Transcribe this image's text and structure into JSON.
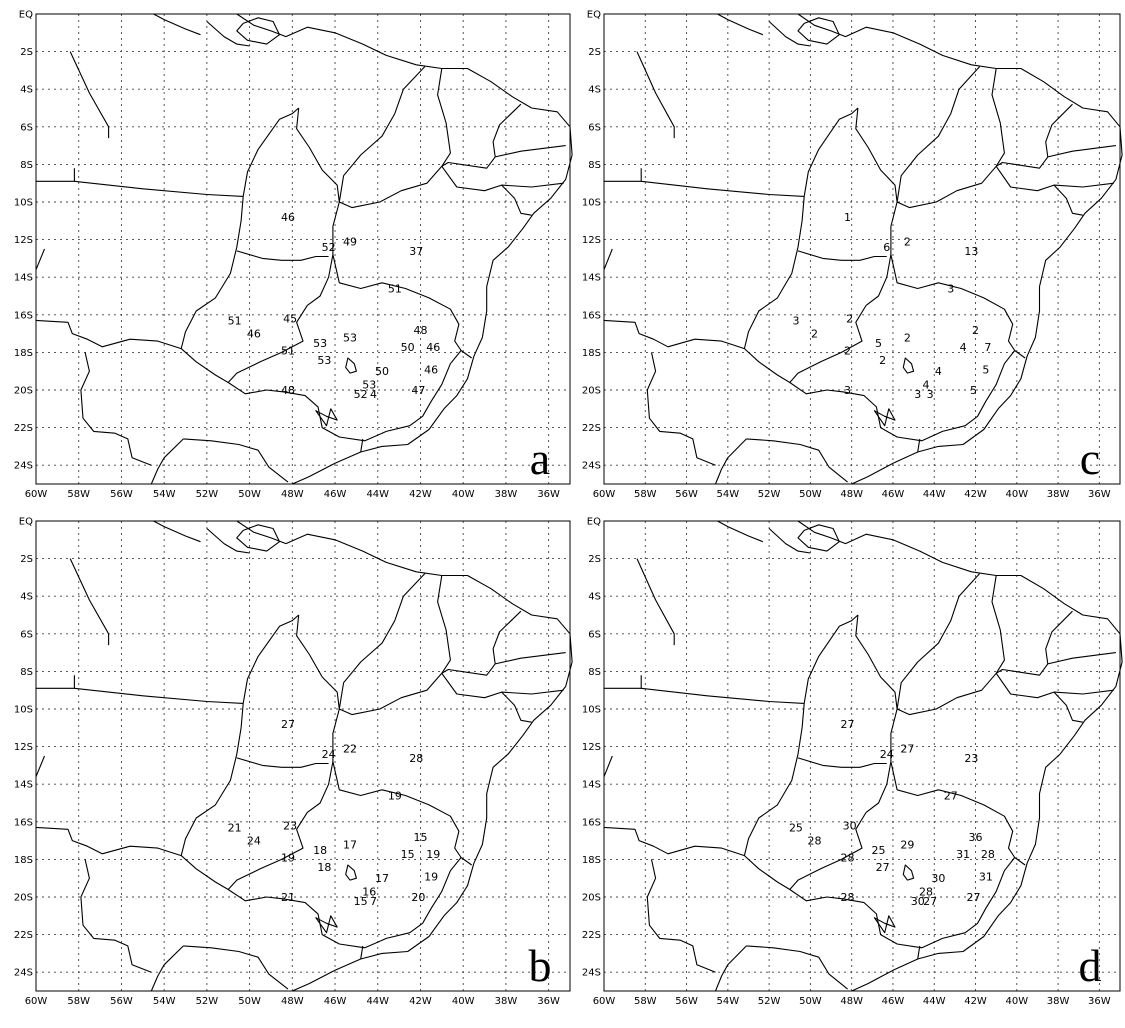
{
  "map": {
    "lon_range": [
      -60,
      -35
    ],
    "lat_range": [
      -25,
      0
    ],
    "lon_ticks": [
      {
        "v": -60,
        "t": "60W"
      },
      {
        "v": -58,
        "t": "58W"
      },
      {
        "v": -56,
        "t": "56W"
      },
      {
        "v": -54,
        "t": "54W"
      },
      {
        "v": -52,
        "t": "52W"
      },
      {
        "v": -50,
        "t": "50W"
      },
      {
        "v": -48,
        "t": "48W"
      },
      {
        "v": -46,
        "t": "46W"
      },
      {
        "v": -44,
        "t": "44W"
      },
      {
        "v": -42,
        "t": "42W"
      },
      {
        "v": -40,
        "t": "40W"
      },
      {
        "v": -38,
        "t": "38W"
      },
      {
        "v": -36,
        "t": "36W"
      }
    ],
    "lat_ticks": [
      {
        "v": 0,
        "t": "EQ"
      },
      {
        "v": -2,
        "t": "2S"
      },
      {
        "v": -4,
        "t": "4S"
      },
      {
        "v": -6,
        "t": "6S"
      },
      {
        "v": -8,
        "t": "8S"
      },
      {
        "v": -10,
        "t": "10S"
      },
      {
        "v": -12,
        "t": "12S"
      },
      {
        "v": -14,
        "t": "14S"
      },
      {
        "v": -16,
        "t": "16S"
      },
      {
        "v": -18,
        "t": "18S"
      },
      {
        "v": -20,
        "t": "20S"
      },
      {
        "v": -22,
        "t": "22S"
      },
      {
        "v": -24,
        "t": "24S"
      }
    ]
  },
  "stations": [
    {
      "lon": -48.2,
      "lat": -10.8
    },
    {
      "lon": -46.3,
      "lat": -12.4
    },
    {
      "lon": -45.3,
      "lat": -12.1
    },
    {
      "lon": -42.2,
      "lat": -12.6
    },
    {
      "lon": -43.2,
      "lat": -14.6
    },
    {
      "lon": -50.7,
      "lat": -16.3
    },
    {
      "lon": -48.1,
      "lat": -16.2
    },
    {
      "lon": -49.8,
      "lat": -17.0
    },
    {
      "lon": -46.7,
      "lat": -17.5
    },
    {
      "lon": -45.3,
      "lat": -17.2
    },
    {
      "lon": -42.0,
      "lat": -16.8
    },
    {
      "lon": -48.2,
      "lat": -17.9
    },
    {
      "lon": -46.5,
      "lat": -18.4
    },
    {
      "lon": -42.6,
      "lat": -17.7
    },
    {
      "lon": -41.4,
      "lat": -17.7
    },
    {
      "lon": -43.8,
      "lat": -19.0
    },
    {
      "lon": -41.5,
      "lat": -18.9
    },
    {
      "lon": -44.4,
      "lat": -19.7
    },
    {
      "lon": -48.2,
      "lat": -20.0
    },
    {
      "lon": -44.8,
      "lat": -20.2
    },
    {
      "lon": -44.2,
      "lat": -20.2
    },
    {
      "lon": -42.1,
      "lat": -20.0
    }
  ],
  "panels": [
    {
      "label": "a",
      "values": [
        "46",
        "52",
        "49",
        "37",
        "51",
        "51",
        "45",
        "46",
        "53",
        "53",
        "48",
        "51",
        "53",
        "50",
        "46",
        "50",
        "46",
        "53",
        "48",
        "52",
        "4",
        "47"
      ]
    },
    {
      "label": "c",
      "values": [
        "1",
        "6",
        "2",
        "13",
        "3",
        "3",
        "2",
        "2",
        "5",
        "2",
        "2",
        "2",
        "2",
        "4",
        "7",
        "4",
        "5",
        "4",
        "3",
        "3",
        "3",
        "5"
      ]
    },
    {
      "label": "b",
      "values": [
        "27",
        "24",
        "22",
        "28",
        "19",
        "21",
        "23",
        "24",
        "18",
        "17",
        "15",
        "19",
        "18",
        "15",
        "19",
        "17",
        "19",
        "16",
        "21",
        "15",
        "7",
        "20"
      ]
    },
    {
      "label": "d",
      "values": [
        "27",
        "24",
        "27",
        "23",
        "27",
        "25",
        "30",
        "28",
        "25",
        "29",
        "36",
        "28",
        "27",
        "31",
        "28",
        "30",
        "31",
        "28",
        "28",
        "30",
        "27",
        "27"
      ]
    }
  ],
  "colors": {
    "ink": "#000000",
    "grid": "#444444",
    "background": "#ffffff"
  }
}
